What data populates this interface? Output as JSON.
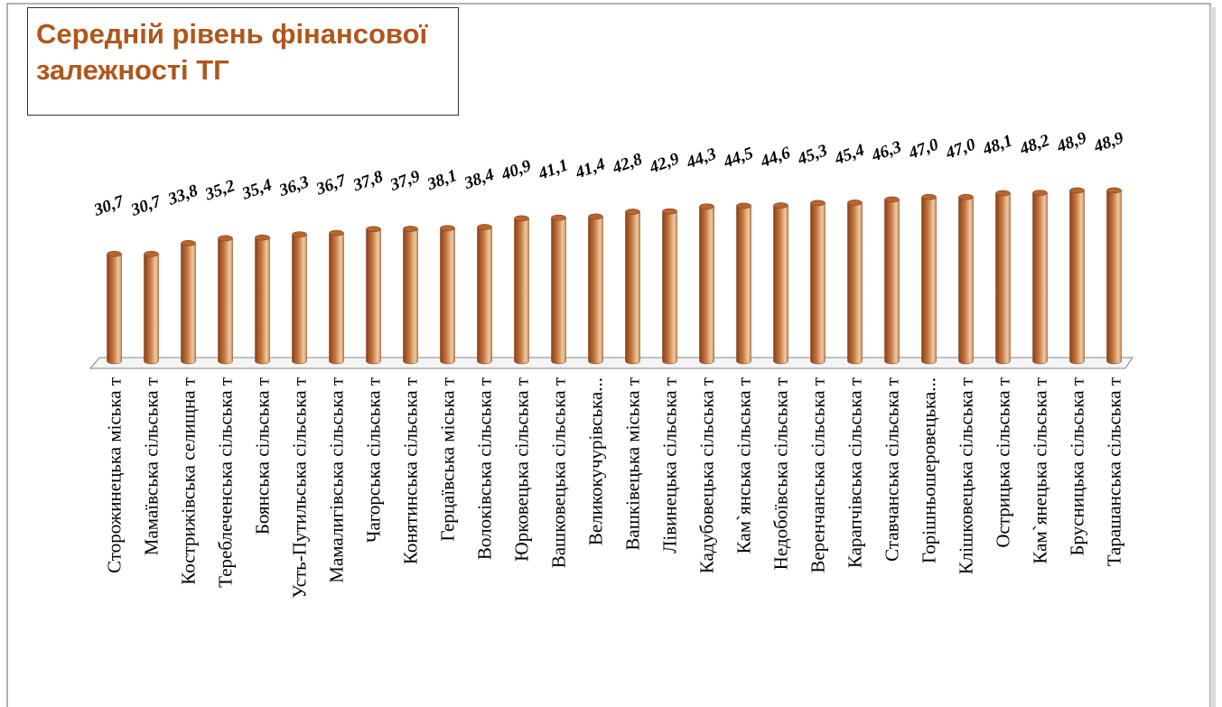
{
  "chart_data": {
    "type": "bar",
    "title": "Середній рівень фінансової залежності ТГ",
    "categories": [
      "Сторожинецька міська т",
      "Мамаївська сільська т",
      "Кострижівська селищна т",
      "Тереблеченська сільська т",
      "Боянська сільська т",
      "Усть-Путильська сільська т",
      "Мамалигівська сільська т",
      "Чагорська сільська т",
      "Конятинська сільська т",
      "Герцаївська міська т",
      "Волоківська сільська т",
      "Юрковецька сільська т",
      "Вашковецька сільська т",
      "Великокучурівська...",
      "Вашківецька міська т",
      "Лівинецька сільська т",
      "Кадубовецька сільська т",
      "Кам`янська сільська т",
      "Недобоївська сільська т",
      "Веренчанська сільська т",
      "Карапчівська сільська т",
      "Ставчанська сільська т",
      "Горішньошеровецька...",
      "Клішковецька сільська т",
      "Острицька сільська т",
      "Кам`янецька сільська т",
      "Брусницька сільська т",
      "Тарашанська сільська т"
    ],
    "values": [
      30.7,
      30.7,
      33.8,
      35.2,
      35.4,
      36.3,
      36.7,
      37.8,
      37.9,
      38.1,
      38.4,
      40.9,
      41.1,
      41.4,
      42.8,
      42.9,
      44.3,
      44.5,
      44.6,
      45.3,
      45.4,
      46.3,
      47.0,
      47.0,
      48.1,
      48.2,
      48.9,
      48.9
    ],
    "value_labels": [
      "30,7",
      "30,7",
      "33,8",
      "35,2",
      "35,4",
      "36,3",
      "36,7",
      "37,8",
      "37,9",
      "38,1",
      "38,4",
      "40,9",
      "41,1",
      "41,4",
      "42,8",
      "42,9",
      "44,3",
      "44,5",
      "44,6",
      "45,3",
      "45,4",
      "46,3",
      "47,0",
      "47,0",
      "48,1",
      "48,2",
      "48,9",
      "48,9"
    ],
    "color": "#c0703a",
    "ylim": [
      0,
      60
    ]
  }
}
